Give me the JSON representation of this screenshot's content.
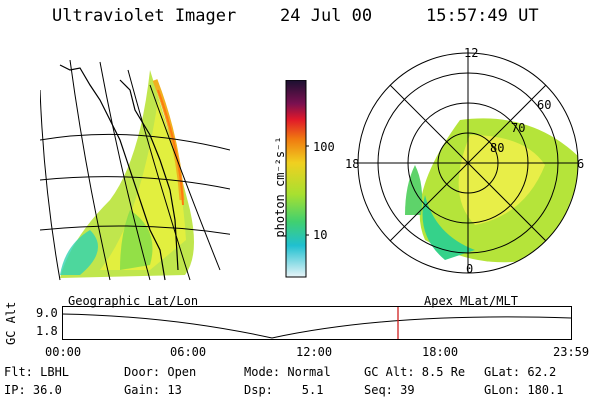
{
  "header": {
    "instrument": "Ultraviolet Imager",
    "date": "24 Jul 00",
    "time": "15:57:49 UT"
  },
  "colorbar": {
    "unit_label": "photon cm⁻²s⁻¹",
    "ticks": [
      "100",
      "10"
    ]
  },
  "panels": {
    "left_caption": "Geographic Lat/Lon",
    "right_caption": "Apex MLat/MLT",
    "polar": {
      "mlt_labels": [
        "12",
        "18",
        "6",
        "0"
      ],
      "lat_labels": [
        "60",
        "70",
        "80"
      ]
    }
  },
  "altitude_plot": {
    "ylabel": "GC Alt",
    "y_ticks": [
      "9.0",
      "1.8"
    ],
    "x_ticks": [
      "00:00",
      "06:00",
      "12:00",
      "18:00",
      "23:59"
    ]
  },
  "status": {
    "flt": "Flt: LBHL",
    "door": "Door: Open",
    "mode": "Mode: Normal",
    "gc_alt": "GC Alt: 8.5 Re",
    "glat": "GLat: 62.2",
    "ip": "IP: 36.0",
    "gain": "Gain: 13",
    "dsp": "Dsp:    5.1",
    "seq": "Seq: 39",
    "glon": "GLon: 180.1"
  }
}
